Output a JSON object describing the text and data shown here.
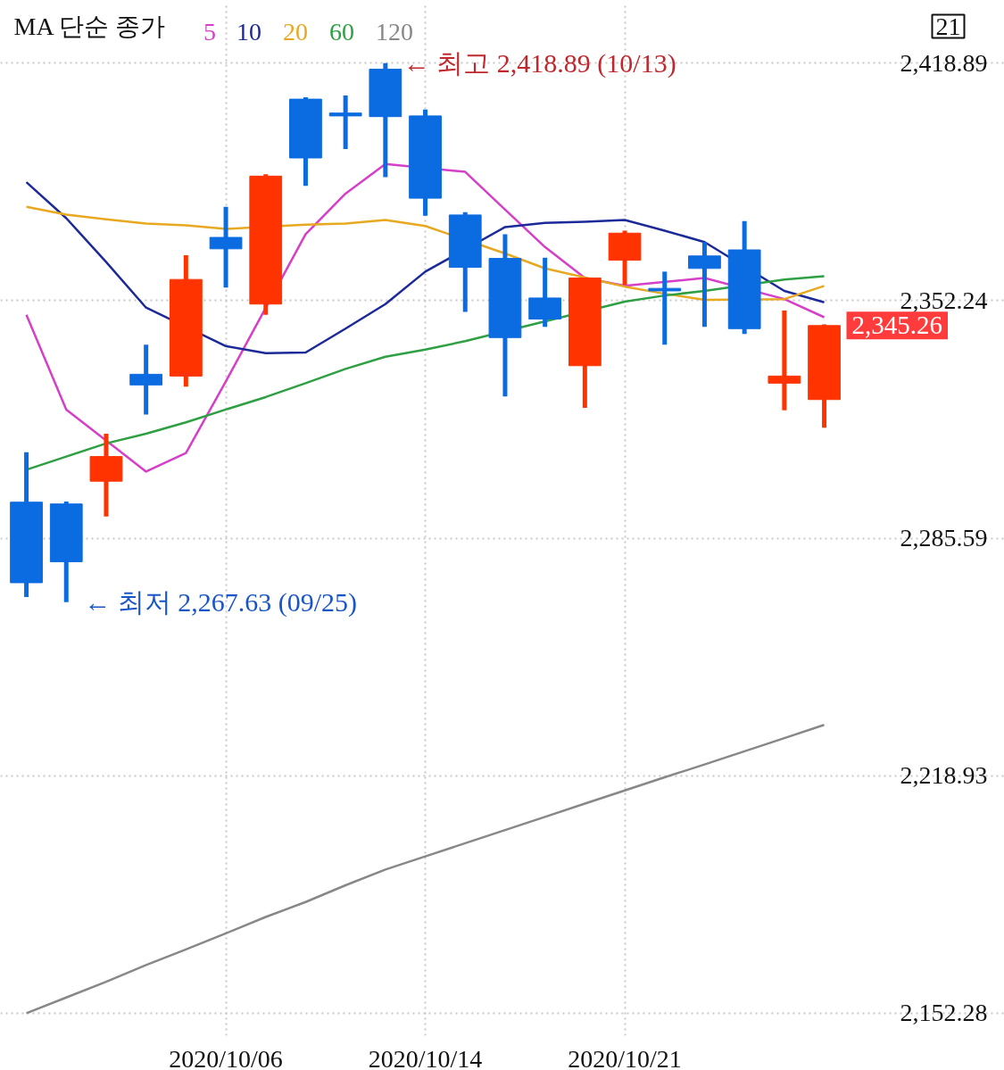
{
  "chart_data": {
    "type": "candlestick",
    "legend_title": "MA 단순 종가",
    "categories": [
      null,
      null,
      null,
      null,
      null,
      "2020/10/06",
      null,
      null,
      null,
      null,
      "2020/10/14",
      null,
      null,
      null,
      null,
      "2020/10/21",
      null,
      null,
      null,
      null,
      null
    ],
    "ohlc": [
      [
        2295.7,
        2309.7,
        2269.1,
        2273.1
      ],
      [
        2295.2,
        2295.9,
        2267.63,
        2279.0
      ],
      [
        2301.6,
        2314.9,
        2291.7,
        2308.5
      ],
      [
        2331.6,
        2339.9,
        2320.3,
        2328.6
      ],
      [
        2331.1,
        2365.0,
        2328.1,
        2358.2
      ],
      [
        2370.0,
        2378.6,
        2355.9,
        2366.8
      ],
      [
        2351.3,
        2387.7,
        2348.3,
        2387.2
      ],
      [
        2408.8,
        2409.3,
        2384.5,
        2392.3
      ],
      [
        2404.9,
        2409.8,
        2394.8,
        2404.1
      ],
      [
        2417.2,
        2418.89,
        2386.9,
        2403.9
      ],
      [
        2404.1,
        2405.9,
        2376.1,
        2381.0
      ],
      [
        2376.3,
        2377.1,
        2349.1,
        2361.6
      ],
      [
        2364.1,
        2370.9,
        2325.4,
        2341.9
      ],
      [
        2353.0,
        2364.3,
        2344.9,
        2347.1
      ],
      [
        2334.0,
        2358.6,
        2322.2,
        2358.6
      ],
      [
        2363.6,
        2371.9,
        2356.7,
        2371.2
      ],
      [
        2355.7,
        2360.4,
        2339.9,
        2355.0
      ],
      [
        2364.8,
        2368.7,
        2344.9,
        2361.3
      ],
      [
        2366.5,
        2374.6,
        2342.9,
        2344.4
      ],
      [
        2329.1,
        2349.5,
        2321.5,
        2331.1
      ],
      [
        2324.5,
        2345.6,
        2316.6,
        2345.26
      ]
    ],
    "colors": [
      "#0b6be0",
      "#0b6be0",
      "#ff3300",
      "#0b6be0",
      "#ff3300",
      "#0b6be0",
      "#ff3300",
      "#0b6be0",
      "#0b6be0",
      "#0b6be0",
      "#0b6be0",
      "#0b6be0",
      "#0b6be0",
      "#0b6be0",
      "#ff3300",
      "#ff3300",
      "#0b6be0",
      "#0b6be0",
      "#0b6be0",
      "#ff3300",
      "#ff3300"
    ],
    "series": [
      {
        "name": "5",
        "type": "line",
        "color": "#d63fc8",
        "values": [
          2348.3,
          2321.7,
          null,
          2304.3,
          2309.5,
          2329.6,
          null,
          2370.9,
          2382.3,
          2390.6,
          null,
          2388.4,
          2377.8,
          2367.3,
          2358.6,
          2356.4,
          null,
          2358.6,
          null,
          2352.7,
          2347.6
        ]
      },
      {
        "name": "10",
        "type": "line",
        "color": "#1c2a99",
        "values": [
          2385.5,
          2375.4,
          2363.1,
          2350.3,
          null,
          2339.5,
          2337.5,
          2337.7,
          2344.4,
          2351.3,
          2360.4,
          null,
          2372.9,
          2374.1,
          2374.4,
          2374.9,
          2371.9,
          2368.7,
          null,
          2355.0,
          2351.8
        ]
      },
      {
        "name": "20",
        "type": "line",
        "color": "#e8a820",
        "values": [
          2378.6,
          2376.4,
          2375.1,
          2373.9,
          2373.4,
          2372.4,
          null,
          2373.6,
          2373.9,
          2374.9,
          2373.2,
          null,
          2365.5,
          2361.3,
          null,
          2356.2,
          2354.2,
          2352.5,
          null,
          2352.7,
          2356.4
        ]
      },
      {
        "name": "60",
        "type": "line",
        "color": "#2ea043",
        "values": [
          2304.8,
          2308.5,
          2312.2,
          2314.9,
          2318.1,
          2321.7,
          2325.2,
          2329.1,
          2333.1,
          2336.5,
          2338.5,
          2340.9,
          null,
          null,
          null,
          2352.0,
          2353.7,
          2355.0,
          null,
          2358.2,
          2359.1
        ]
      },
      {
        "name": "120",
        "type": "line",
        "color": "#888888",
        "values": [
          2152.3,
          2156.7,
          2161.1,
          2165.8,
          2170.2,
          2174.7,
          2179.3,
          2183.5,
          2188.2,
          2192.6,
          2196.3,
          2200.0,
          2203.7,
          2207.4,
          2211.1,
          2214.8,
          2218.5,
          2222.1,
          2225.8,
          2229.5,
          2233.2
        ]
      }
    ],
    "ylim": [
      2146,
      2436
    ],
    "yticks": [
      {
        "value": 2152.28,
        "label": "2,152.28"
      },
      {
        "value": 2218.93,
        "label": "2,218.93"
      },
      {
        "value": 2285.59,
        "label": "2,285.59"
      },
      {
        "value": 2352.24,
        "label": "2,352.24"
      },
      {
        "value": 2418.89,
        "label": "2,418.89"
      }
    ],
    "grid": true,
    "legend": "top left",
    "annotations": [
      "21",
      "← 최고 2,418.89 (10/13)",
      "← 최저 2,267.63 (09/25)",
      "2,345.26"
    ]
  }
}
